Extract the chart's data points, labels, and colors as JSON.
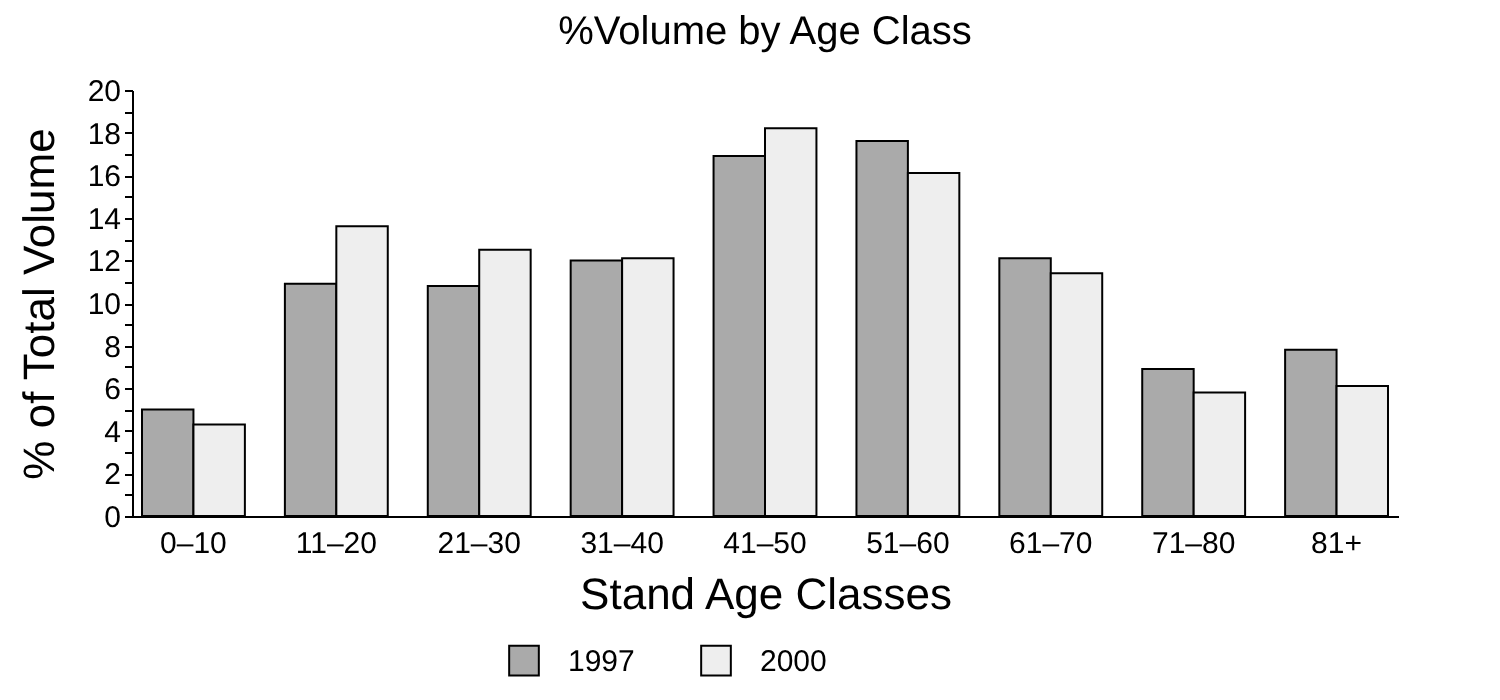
{
  "chart_data": {
    "type": "bar",
    "title": "%Volume by Age Class",
    "xlabel": "Stand Age Classes",
    "ylabel": "% of Total Volume",
    "categories": [
      "0–10",
      "11–20",
      "21–30",
      "31–40",
      "41–50",
      "51–60",
      "61–70",
      "71–80",
      "81+"
    ],
    "series": [
      {
        "name": "1997",
        "color": "#aaaaaa",
        "values": [
          5.0,
          10.9,
          10.8,
          12.0,
          16.9,
          17.6,
          12.1,
          6.9,
          7.8
        ]
      },
      {
        "name": "2000",
        "color": "#eeeeee",
        "values": [
          4.3,
          13.6,
          12.5,
          12.1,
          18.2,
          16.1,
          11.4,
          5.8,
          6.1
        ]
      }
    ],
    "ylim": [
      0,
      20
    ],
    "yticks": [
      0,
      {
        "value": 1,
        "label": null
      },
      2,
      {
        "value": 3,
        "label": null
      },
      4,
      {
        "value": 5,
        "label": null
      },
      6,
      {
        "value": 7,
        "label": null
      },
      8,
      {
        "value": 9,
        "label": null
      },
      10,
      {
        "value": 11,
        "label": null
      },
      12,
      {
        "value": 13,
        "label": null
      },
      14,
      {
        "value": 15,
        "label": null
      },
      16,
      {
        "value": 17,
        "label": null
      },
      18,
      {
        "value": 19,
        "label": null
      },
      20
    ],
    "grid": false,
    "legend": "bottom"
  }
}
